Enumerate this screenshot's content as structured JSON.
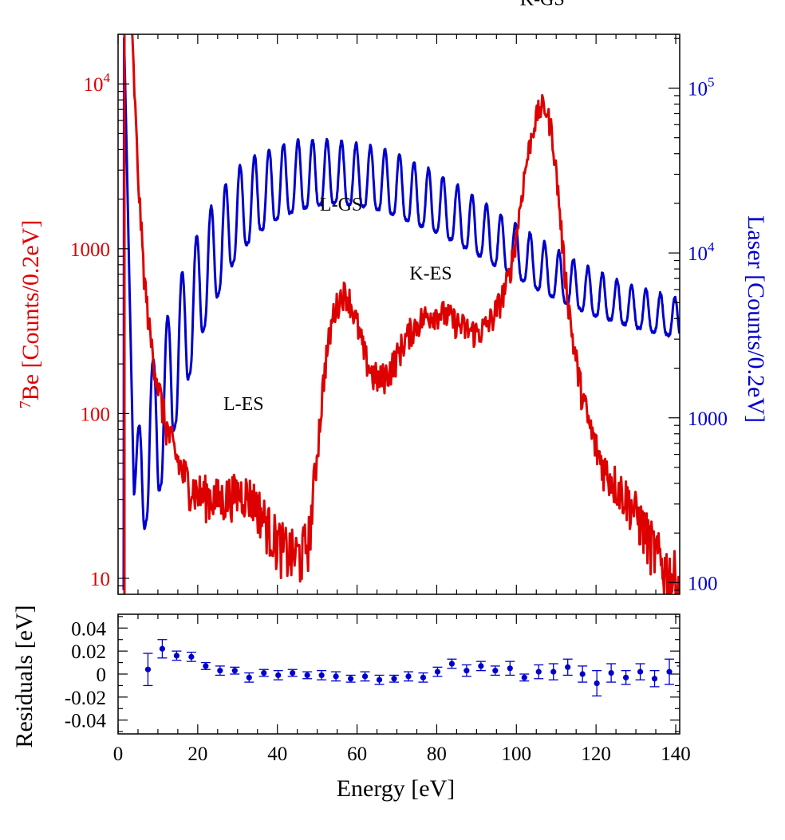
{
  "colors": {
    "be7": "#dd0000",
    "laser": "#0000cc",
    "residual": "#0000cc",
    "frame": "#000000"
  },
  "chart_data": [
    {
      "type": "line",
      "title": "",
      "xlabel": "Energy [eV]",
      "xlim": [
        0,
        141
      ],
      "y_left": {
        "label_sup": "7",
        "label": "Be [Counts/0.2eV]",
        "scale": "log",
        "ylim": [
          8,
          20000
        ],
        "ticks": [
          {
            "value": 10,
            "text": "10",
            "sup": ""
          },
          {
            "value": 100,
            "text": "100",
            "sup": ""
          },
          {
            "value": 1000,
            "text": "1000",
            "sup": ""
          },
          {
            "value": 10000,
            "text": "10",
            "sup": "4"
          }
        ]
      },
      "y_right": {
        "label": "Laser [Counts/0.2eV]",
        "scale": "log",
        "ylim": [
          85,
          212000
        ],
        "ticks": [
          {
            "value": 100,
            "text": "100",
            "sup": ""
          },
          {
            "value": 1000,
            "text": "1000",
            "sup": ""
          },
          {
            "value": 10000,
            "text": "10",
            "sup": "4"
          },
          {
            "value": 100000,
            "text": "10",
            "sup": "5"
          }
        ]
      },
      "annotations": [
        {
          "text": "K-GS",
          "x": 106.5,
          "y": 30000
        },
        {
          "text": "L-GS",
          "x": 56,
          "y": 1700
        },
        {
          "text": "K-ES",
          "x": 78.5,
          "y": 650
        },
        {
          "text": "L-ES",
          "x": 31.5,
          "y": 105
        }
      ],
      "series": [
        {
          "name": "7Be",
          "axis": "left",
          "points": [
            [
              3.5,
              20000
            ],
            [
              5,
              2800
            ],
            [
              6.5,
              700
            ],
            [
              8,
              300
            ],
            [
              10,
              150
            ],
            [
              12,
              85
            ],
            [
              14,
              60
            ],
            [
              16,
              45
            ],
            [
              18,
              37
            ],
            [
              20,
              33
            ],
            [
              22,
              32
            ],
            [
              24,
              31
            ],
            [
              26,
              30
            ],
            [
              28,
              32
            ],
            [
              30,
              33
            ],
            [
              32,
              33
            ],
            [
              34,
              30
            ],
            [
              36,
              25
            ],
            [
              38,
              20
            ],
            [
              40,
              17
            ],
            [
              42,
              15
            ],
            [
              44,
              14
            ],
            [
              46,
              14
            ],
            [
              48,
              18
            ],
            [
              50,
              60
            ],
            [
              52,
              200
            ],
            [
              54,
              400
            ],
            [
              56,
              520
            ],
            [
              57,
              540
            ],
            [
              58,
              500
            ],
            [
              60,
              350
            ],
            [
              62,
              220
            ],
            [
              64,
              170
            ],
            [
              66,
              160
            ],
            [
              68,
              180
            ],
            [
              70,
              220
            ],
            [
              72,
              280
            ],
            [
              74,
              330
            ],
            [
              76,
              370
            ],
            [
              78,
              400
            ],
            [
              80,
              410
            ],
            [
              82,
              400
            ],
            [
              84,
              370
            ],
            [
              86,
              340
            ],
            [
              88,
              320
            ],
            [
              90,
              310
            ],
            [
              92,
              330
            ],
            [
              94,
              380
            ],
            [
              96,
              480
            ],
            [
              98,
              650
            ],
            [
              100,
              1200
            ],
            [
              102,
              2800
            ],
            [
              104,
              5200
            ],
            [
              105.5,
              6800
            ],
            [
              106.5,
              7300
            ],
            [
              107.5,
              7000
            ],
            [
              109,
              5000
            ],
            [
              110.5,
              2200
            ],
            [
              112,
              800
            ],
            [
              114,
              300
            ],
            [
              116,
              150
            ],
            [
              118,
              90
            ],
            [
              120,
              62
            ],
            [
              122,
              47
            ],
            [
              124,
              40
            ],
            [
              126,
              35
            ],
            [
              128,
              30
            ],
            [
              130,
              25
            ],
            [
              132,
              20
            ],
            [
              134,
              16
            ],
            [
              136,
              13
            ],
            [
              138,
              11
            ],
            [
              140,
              10
            ],
            [
              141,
              9
            ]
          ]
        },
        {
          "name": "Laser",
          "axis": "right",
          "fringe_period_ev": 3.64,
          "first_peak_ev": 1.5,
          "envelope": [
            [
              1.5,
              200000
            ],
            [
              4,
              600
            ],
            [
              7.3,
              1800
            ],
            [
              11,
              3200
            ],
            [
              15,
              6500
            ],
            [
              18.6,
              11000
            ],
            [
              22,
              17000
            ],
            [
              26,
              24000
            ],
            [
              30,
              33000
            ],
            [
              35,
              40000
            ],
            [
              40,
              45000
            ],
            [
              45,
              48000
            ],
            [
              50,
              49000
            ],
            [
              55,
              48000
            ],
            [
              60,
              46000
            ],
            [
              65,
              44000
            ],
            [
              70,
              40000
            ],
            [
              75,
              35000
            ],
            [
              80,
              31000
            ],
            [
              85,
              26000
            ],
            [
              90,
              22000
            ],
            [
              95,
              18000
            ],
            [
              100,
              15000
            ],
            [
              105,
              12500
            ],
            [
              110,
              10500
            ],
            [
              115,
              9000
            ],
            [
              120,
              7800
            ],
            [
              125,
              7000
            ],
            [
              130,
              6300
            ],
            [
              135,
              5800
            ],
            [
              141,
              5300
            ]
          ],
          "trough_ratio": [
            [
              1.5,
              1
            ],
            [
              6,
              0.15
            ],
            [
              10,
              0.12
            ],
            [
              20,
              0.2
            ],
            [
              30,
              0.3
            ],
            [
              40,
              0.36
            ],
            [
              55,
              0.42
            ],
            [
              70,
              0.42
            ],
            [
              90,
              0.45
            ],
            [
              110,
              0.5
            ],
            [
              125,
              0.55
            ],
            [
              141,
              0.58
            ]
          ]
        }
      ]
    },
    {
      "type": "scatter",
      "xlabel": "Energy [eV]",
      "ylabel": "Residuals [eV]",
      "xlim": [
        0,
        141
      ],
      "ylim": [
        -0.052,
        0.052
      ],
      "x_ticks": [
        "0",
        "20",
        "40",
        "60",
        "80",
        "100",
        "120",
        "140"
      ],
      "y_ticks": [
        "0.04",
        "0.02",
        "0",
        "-0.02",
        "-0.04"
      ],
      "series": [
        {
          "name": "Residuals",
          "points": [
            {
              "x": 7.5,
              "y": 0.004,
              "err": 0.014
            },
            {
              "x": 11.1,
              "y": 0.022,
              "err": 0.008
            },
            {
              "x": 14.7,
              "y": 0.016,
              "err": 0.004
            },
            {
              "x": 18.4,
              "y": 0.015,
              "err": 0.004
            },
            {
              "x": 22.0,
              "y": 0.007,
              "err": 0.003
            },
            {
              "x": 25.6,
              "y": 0.003,
              "err": 0.004
            },
            {
              "x": 29.3,
              "y": 0.003,
              "err": 0.003
            },
            {
              "x": 32.9,
              "y": -0.003,
              "err": 0.004
            },
            {
              "x": 36.6,
              "y": 0.001,
              "err": 0.003
            },
            {
              "x": 40.2,
              "y": -0.001,
              "err": 0.004
            },
            {
              "x": 43.8,
              "y": 0.001,
              "err": 0.003
            },
            {
              "x": 47.5,
              "y": -0.001,
              "err": 0.003
            },
            {
              "x": 51.1,
              "y": -0.001,
              "err": 0.004
            },
            {
              "x": 54.7,
              "y": -0.002,
              "err": 0.004
            },
            {
              "x": 58.4,
              "y": -0.004,
              "err": 0.003
            },
            {
              "x": 62.0,
              "y": -0.002,
              "err": 0.004
            },
            {
              "x": 65.6,
              "y": -0.005,
              "err": 0.004
            },
            {
              "x": 69.3,
              "y": -0.004,
              "err": 0.003
            },
            {
              "x": 72.9,
              "y": -0.002,
              "err": 0.004
            },
            {
              "x": 76.6,
              "y": -0.003,
              "err": 0.004
            },
            {
              "x": 80.2,
              "y": 0.002,
              "err": 0.004
            },
            {
              "x": 83.8,
              "y": 0.009,
              "err": 0.004
            },
            {
              "x": 87.5,
              "y": 0.003,
              "err": 0.005
            },
            {
              "x": 91.1,
              "y": 0.007,
              "err": 0.004
            },
            {
              "x": 94.7,
              "y": 0.003,
              "err": 0.004
            },
            {
              "x": 98.4,
              "y": 0.005,
              "err": 0.006
            },
            {
              "x": 102.0,
              "y": -0.003,
              "err": 0.003
            },
            {
              "x": 105.6,
              "y": 0.002,
              "err": 0.006
            },
            {
              "x": 109.3,
              "y": 0.002,
              "err": 0.007
            },
            {
              "x": 112.9,
              "y": 0.006,
              "err": 0.007
            },
            {
              "x": 116.6,
              "y": 0.0,
              "err": 0.007
            },
            {
              "x": 120.2,
              "y": -0.008,
              "err": 0.011
            },
            {
              "x": 123.8,
              "y": 0.001,
              "err": 0.008
            },
            {
              "x": 127.5,
              "y": -0.003,
              "err": 0.006
            },
            {
              "x": 131.1,
              "y": 0.002,
              "err": 0.007
            },
            {
              "x": 134.7,
              "y": -0.004,
              "err": 0.007
            },
            {
              "x": 138.4,
              "y": 0.002,
              "err": 0.011
            },
            {
              "x": 141.5,
              "y": -0.004,
              "err": 0.011
            }
          ]
        }
      ]
    }
  ]
}
